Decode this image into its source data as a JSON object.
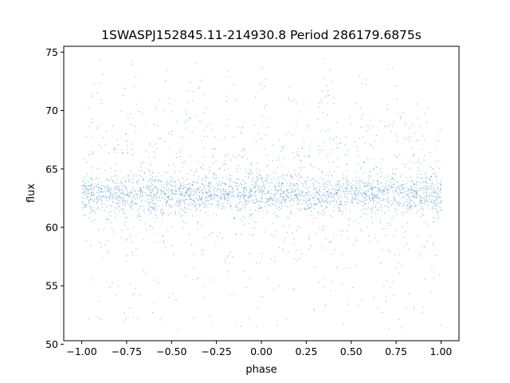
{
  "chart_data": {
    "type": "scatter",
    "title": "1SWASPJ152845.11-214930.8 Period 286179.6875s",
    "xlabel": "phase",
    "ylabel": "flux",
    "xlim": [
      -1.1,
      1.1
    ],
    "ylim": [
      50.3,
      75.5
    ],
    "x_ticks": [
      -1.0,
      -0.75,
      -0.5,
      -0.25,
      0.0,
      0.25,
      0.5,
      0.75,
      1.0
    ],
    "x_tick_labels": [
      "−1.00",
      "−0.75",
      "−0.50",
      "−0.25",
      "0.00",
      "0.25",
      "0.50",
      "0.75",
      "1.00"
    ],
    "y_ticks": [
      50,
      55,
      60,
      65,
      70,
      75
    ],
    "y_tick_labels": [
      "50",
      "55",
      "60",
      "65",
      "70",
      "75"
    ],
    "grid": false,
    "marker_color": "#1f77b4",
    "series": [
      {
        "phase_range": [
          -1.0,
          1.0
        ],
        "flux_median": 62.9,
        "flux_core_range": [
          60.5,
          65.5
        ],
        "flux_min": 51.2,
        "flux_max": 74.5,
        "periodic_over_phase": true
      }
    ]
  }
}
